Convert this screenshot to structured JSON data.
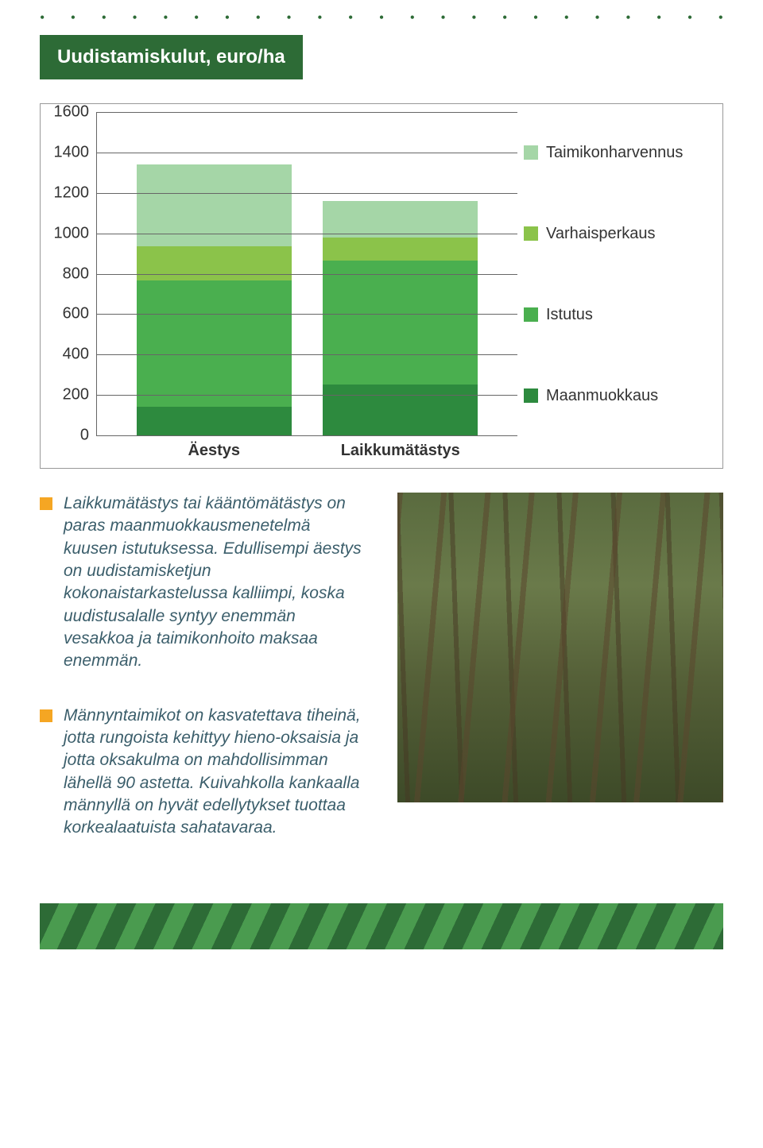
{
  "title": "Uudistamiskulut, euro/ha",
  "chart": {
    "type": "stacked-bar",
    "ylim": [
      0,
      1600
    ],
    "ytick_step": 200,
    "yticks": [
      0,
      200,
      400,
      600,
      800,
      1000,
      1200,
      1400,
      1600
    ],
    "categories": [
      "Äestys",
      "Laikkumätästys"
    ],
    "series": [
      {
        "key": "maanmuokkaus",
        "label": "Maanmuokkaus",
        "color": "#2d8a3e"
      },
      {
        "key": "istutus",
        "label": "Istutus",
        "color": "#4aaf4f"
      },
      {
        "key": "varhaisperkaus",
        "label": "Varhaisperkaus",
        "color": "#8bc34a"
      },
      {
        "key": "taimikonharvennus",
        "label": "Taimikonharvennus",
        "color": "#a5d6a7"
      }
    ],
    "data": [
      {
        "maanmuokkaus": 140,
        "istutus": 620,
        "varhaisperkaus": 170,
        "taimikonharvennus": 400
      },
      {
        "maanmuokkaus": 250,
        "istutus": 610,
        "varhaisperkaus": 110,
        "taimikonharvennus": 180
      }
    ],
    "axis_color": "#666666",
    "tick_fontsize": 20,
    "label_fontsize": 20,
    "background_color": "#ffffff"
  },
  "paragraphs": [
    "Laikkumätästys tai kääntömätästys on paras maanmuokkausmenetelmä kuusen istutuksessa. Edullisempi äestys on uudistamisketjun kokonaistarkastelussa kalliimpi, koska uudistusalalle syntyy enemmän vesakkoa ja taimikonhoito maksaa enemmän.",
    "Männyntaimikot on kasvatettava tiheinä, jotta rungoista kehittyy hieno-oksaisia ja jotta oksakulma on mahdollisimman lähellä 90 astetta. Kuivahkolla kankaalla männyllä on hyvät edellytykset tuottaa korkealaatuista sahatavaraa."
  ],
  "colors": {
    "brand_dark_green": "#2d6b36",
    "brand_mid_green": "#4a9b4f",
    "bullet": "#f5a623",
    "body_text": "#3b5e6b"
  }
}
